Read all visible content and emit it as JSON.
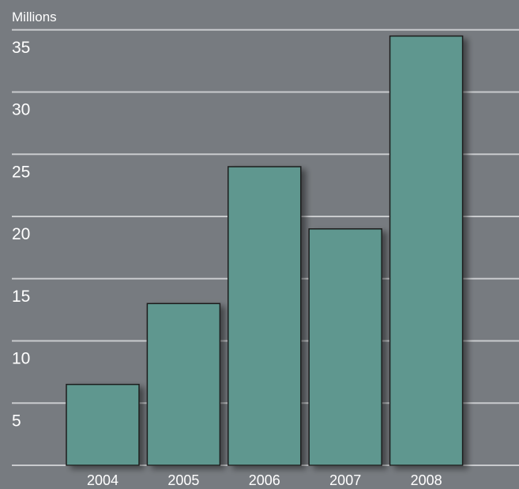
{
  "chart_data": {
    "type": "bar",
    "unit_label": "Millions",
    "categories": [
      "2004",
      "2005",
      "2006",
      "2007",
      "2008"
    ],
    "values": [
      6.5,
      13,
      24,
      19,
      34.5
    ],
    "yticks": [
      5,
      10,
      15,
      20,
      25,
      30,
      35
    ],
    "ylim": [
      0,
      36.3
    ],
    "grid": true,
    "title": "",
    "xlabel": "",
    "ylabel": ""
  },
  "colors": {
    "background": "#777b80",
    "bar_fill": "#5f978f",
    "bar_stroke": "#1e1e1e",
    "gridline": "#c9cbce",
    "text": "#ffffff"
  }
}
